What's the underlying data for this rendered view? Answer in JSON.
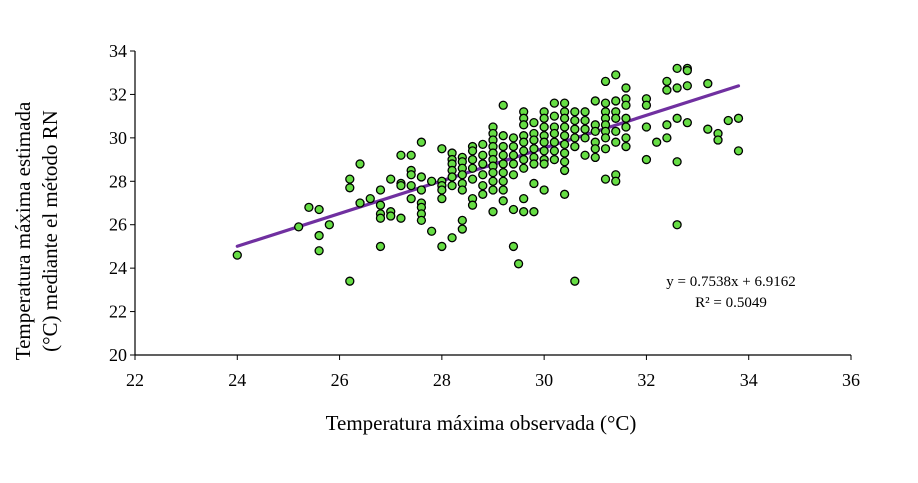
{
  "chart_data": {
    "type": "scatter",
    "xlabel": "Temperatura máxima observada (°C)",
    "ylabel_line1": "Temperatura máxima estimada",
    "ylabel_line2": "(°C) mediante el método RN",
    "xlim": [
      22,
      36
    ],
    "ylim": [
      20,
      34
    ],
    "xticks": [
      22,
      24,
      26,
      28,
      30,
      32,
      34,
      36
    ],
    "yticks": [
      20,
      22,
      24,
      26,
      28,
      30,
      32,
      34
    ],
    "grid": false,
    "marker_fill": "#66dd44",
    "marker_edge": "#000000",
    "trendline_color": "#7030a0",
    "trendline": {
      "slope": 0.7538,
      "intercept": 6.9162,
      "x_range": [
        24,
        33.8
      ]
    },
    "equation": "y = 0.7538x + 6.9162",
    "r2_label": "R² = 0.5049",
    "points": [
      [
        24.0,
        24.6
      ],
      [
        25.2,
        25.9
      ],
      [
        25.4,
        26.8
      ],
      [
        25.6,
        26.7
      ],
      [
        25.6,
        25.5
      ],
      [
        25.6,
        24.8
      ],
      [
        25.8,
        26.0
      ],
      [
        26.2,
        28.1
      ],
      [
        26.2,
        27.7
      ],
      [
        26.2,
        23.4
      ],
      [
        26.4,
        28.8
      ],
      [
        26.4,
        27.0
      ],
      [
        26.6,
        27.2
      ],
      [
        26.8,
        27.6
      ],
      [
        26.8,
        26.9
      ],
      [
        26.8,
        26.5
      ],
      [
        26.8,
        26.3
      ],
      [
        26.8,
        25.0
      ],
      [
        27.0,
        28.1
      ],
      [
        27.0,
        26.6
      ],
      [
        27.0,
        26.4
      ],
      [
        27.2,
        29.2
      ],
      [
        27.2,
        27.9
      ],
      [
        27.2,
        27.8
      ],
      [
        27.2,
        26.3
      ],
      [
        27.4,
        29.2
      ],
      [
        27.4,
        28.5
      ],
      [
        27.4,
        28.3
      ],
      [
        27.4,
        27.8
      ],
      [
        27.4,
        27.2
      ],
      [
        27.6,
        29.8
      ],
      [
        27.6,
        28.2
      ],
      [
        27.6,
        27.6
      ],
      [
        27.6,
        27.0
      ],
      [
        27.6,
        26.8
      ],
      [
        27.6,
        26.5
      ],
      [
        27.6,
        26.2
      ],
      [
        27.8,
        28.0
      ],
      [
        27.8,
        25.7
      ],
      [
        28.0,
        29.5
      ],
      [
        28.0,
        28.0
      ],
      [
        28.0,
        27.8
      ],
      [
        28.0,
        27.6
      ],
      [
        28.0,
        27.2
      ],
      [
        28.0,
        25.0
      ],
      [
        28.2,
        29.3
      ],
      [
        28.2,
        29.0
      ],
      [
        28.2,
        28.8
      ],
      [
        28.2,
        28.5
      ],
      [
        28.2,
        28.2
      ],
      [
        28.2,
        27.8
      ],
      [
        28.2,
        25.4
      ],
      [
        28.4,
        29.1
      ],
      [
        28.4,
        28.9
      ],
      [
        28.4,
        28.6
      ],
      [
        28.4,
        28.3
      ],
      [
        28.4,
        27.9
      ],
      [
        28.4,
        27.6
      ],
      [
        28.4,
        26.2
      ],
      [
        28.4,
        25.8
      ],
      [
        28.6,
        29.6
      ],
      [
        28.6,
        29.4
      ],
      [
        28.6,
        29.0
      ],
      [
        28.6,
        28.6
      ],
      [
        28.6,
        28.1
      ],
      [
        28.6,
        27.2
      ],
      [
        28.6,
        26.9
      ],
      [
        28.8,
        29.7
      ],
      [
        28.8,
        29.2
      ],
      [
        28.8,
        28.8
      ],
      [
        28.8,
        28.3
      ],
      [
        28.8,
        27.8
      ],
      [
        28.8,
        27.4
      ],
      [
        29.0,
        30.5
      ],
      [
        29.0,
        30.2
      ],
      [
        29.0,
        29.9
      ],
      [
        29.0,
        29.6
      ],
      [
        29.0,
        29.3
      ],
      [
        29.0,
        29.0
      ],
      [
        29.0,
        28.7
      ],
      [
        29.0,
        28.4
      ],
      [
        29.0,
        28.0
      ],
      [
        29.0,
        27.6
      ],
      [
        29.0,
        26.6
      ],
      [
        29.2,
        31.5
      ],
      [
        29.2,
        30.1
      ],
      [
        29.2,
        29.6
      ],
      [
        29.2,
        29.2
      ],
      [
        29.2,
        28.8
      ],
      [
        29.2,
        28.4
      ],
      [
        29.2,
        28.0
      ],
      [
        29.2,
        27.6
      ],
      [
        29.2,
        27.1
      ],
      [
        29.4,
        30.0
      ],
      [
        29.4,
        29.6
      ],
      [
        29.4,
        29.2
      ],
      [
        29.4,
        28.8
      ],
      [
        29.4,
        28.3
      ],
      [
        29.4,
        26.7
      ],
      [
        29.4,
        25.0
      ],
      [
        29.5,
        24.2
      ],
      [
        29.6,
        31.2
      ],
      [
        29.6,
        30.9
      ],
      [
        29.6,
        30.6
      ],
      [
        29.6,
        30.1
      ],
      [
        29.6,
        29.8
      ],
      [
        29.6,
        29.4
      ],
      [
        29.6,
        29.0
      ],
      [
        29.6,
        28.6
      ],
      [
        29.6,
        27.2
      ],
      [
        29.6,
        26.6
      ],
      [
        29.8,
        30.7
      ],
      [
        29.8,
        30.2
      ],
      [
        29.8,
        29.9
      ],
      [
        29.8,
        29.5
      ],
      [
        29.8,
        29.1
      ],
      [
        29.8,
        28.8
      ],
      [
        29.8,
        27.9
      ],
      [
        29.8,
        26.6
      ],
      [
        30.0,
        31.2
      ],
      [
        30.0,
        30.9
      ],
      [
        30.0,
        30.5
      ],
      [
        30.0,
        30.1
      ],
      [
        30.0,
        29.8
      ],
      [
        30.0,
        29.4
      ],
      [
        30.0,
        29.0
      ],
      [
        30.0,
        28.8
      ],
      [
        30.0,
        27.6
      ],
      [
        30.2,
        31.6
      ],
      [
        30.2,
        31.0
      ],
      [
        30.2,
        30.5
      ],
      [
        30.2,
        30.2
      ],
      [
        30.2,
        29.8
      ],
      [
        30.2,
        29.4
      ],
      [
        30.2,
        29.0
      ],
      [
        30.4,
        31.6
      ],
      [
        30.4,
        31.2
      ],
      [
        30.4,
        30.9
      ],
      [
        30.4,
        30.5
      ],
      [
        30.4,
        30.1
      ],
      [
        30.4,
        29.7
      ],
      [
        30.4,
        29.3
      ],
      [
        30.4,
        28.9
      ],
      [
        30.4,
        28.5
      ],
      [
        30.4,
        27.4
      ],
      [
        30.6,
        31.2
      ],
      [
        30.6,
        30.8
      ],
      [
        30.6,
        30.4
      ],
      [
        30.6,
        30.0
      ],
      [
        30.6,
        29.6
      ],
      [
        30.6,
        23.4
      ],
      [
        30.8,
        31.2
      ],
      [
        30.8,
        30.8
      ],
      [
        30.8,
        30.4
      ],
      [
        30.8,
        30.0
      ],
      [
        30.8,
        29.2
      ],
      [
        31.0,
        31.7
      ],
      [
        31.0,
        30.6
      ],
      [
        31.0,
        30.3
      ],
      [
        31.0,
        29.8
      ],
      [
        31.0,
        29.5
      ],
      [
        31.0,
        29.1
      ],
      [
        31.2,
        32.6
      ],
      [
        31.2,
        31.6
      ],
      [
        31.2,
        31.2
      ],
      [
        31.2,
        30.9
      ],
      [
        31.2,
        30.6
      ],
      [
        31.2,
        30.3
      ],
      [
        31.2,
        30.0
      ],
      [
        31.2,
        29.5
      ],
      [
        31.2,
        28.1
      ],
      [
        31.4,
        32.9
      ],
      [
        31.4,
        31.7
      ],
      [
        31.4,
        31.2
      ],
      [
        31.4,
        30.9
      ],
      [
        31.4,
        30.3
      ],
      [
        31.4,
        29.8
      ],
      [
        31.4,
        28.3
      ],
      [
        31.4,
        28.0
      ],
      [
        31.6,
        32.3
      ],
      [
        31.6,
        31.8
      ],
      [
        31.6,
        31.5
      ],
      [
        31.6,
        30.9
      ],
      [
        31.6,
        30.5
      ],
      [
        31.6,
        30.0
      ],
      [
        31.6,
        29.6
      ],
      [
        32.0,
        31.8
      ],
      [
        32.0,
        31.5
      ],
      [
        32.0,
        30.5
      ],
      [
        32.0,
        29.0
      ],
      [
        32.2,
        29.8
      ],
      [
        32.4,
        32.6
      ],
      [
        32.4,
        32.2
      ],
      [
        32.4,
        30.6
      ],
      [
        32.4,
        30.0
      ],
      [
        32.6,
        33.2
      ],
      [
        32.6,
        32.3
      ],
      [
        32.6,
        30.9
      ],
      [
        32.6,
        28.9
      ],
      [
        32.6,
        26.0
      ],
      [
        32.8,
        33.2
      ],
      [
        32.8,
        33.1
      ],
      [
        32.8,
        32.4
      ],
      [
        32.8,
        30.7
      ],
      [
        33.2,
        32.5
      ],
      [
        33.2,
        30.4
      ],
      [
        33.4,
        30.2
      ],
      [
        33.4,
        29.9
      ],
      [
        33.6,
        30.8
      ],
      [
        33.8,
        30.9
      ],
      [
        33.8,
        29.4
      ]
    ]
  }
}
